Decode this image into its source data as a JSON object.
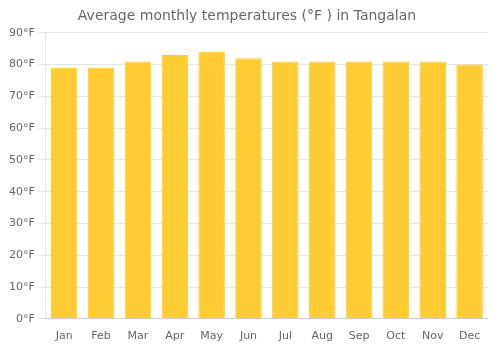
{
  "chart_data": {
    "type": "bar",
    "title": "Average monthly temperatures (°F ) in Tangalan",
    "categories": [
      "Jan",
      "Feb",
      "Mar",
      "Apr",
      "May",
      "Jun",
      "Jul",
      "Aug",
      "Sep",
      "Oct",
      "Nov",
      "Dec"
    ],
    "values": [
      79,
      79,
      81,
      83,
      84,
      82,
      81,
      81,
      81,
      81,
      81,
      80
    ],
    "color": "#FFCC33",
    "ylim": [
      0,
      90
    ],
    "yticks": [
      {
        "value": 0,
        "label": "0°F"
      },
      {
        "value": 10,
        "label": "10°F"
      },
      {
        "value": 20,
        "label": "20°F"
      },
      {
        "value": 30,
        "label": "30°F"
      },
      {
        "value": 40,
        "label": "40°F"
      },
      {
        "value": 50,
        "label": "50°F"
      },
      {
        "value": 60,
        "label": "60°F"
      },
      {
        "value": 70,
        "label": "70°F"
      },
      {
        "value": 80,
        "label": "80°F"
      },
      {
        "value": 90,
        "label": "90°F"
      }
    ],
    "grid": true
  }
}
